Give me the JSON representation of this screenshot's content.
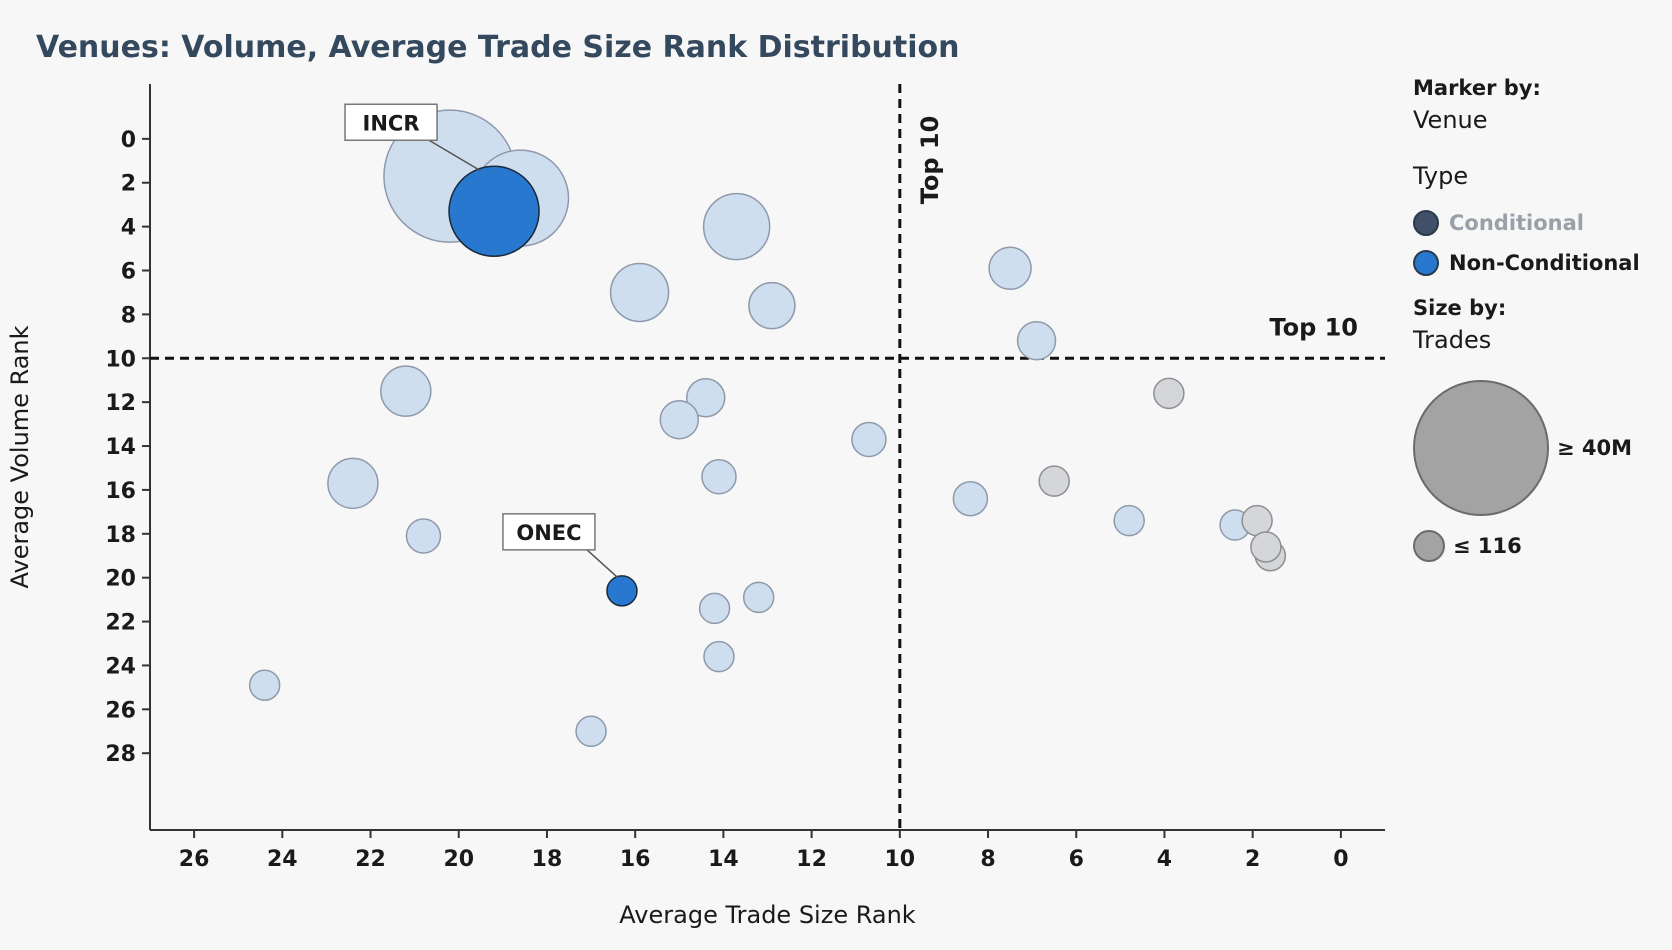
{
  "title": "Venues: Volume, Average Trade Size Rank Distribution",
  "legend": {
    "marker_by_heading": "Marker by:",
    "marker_by_value": "Venue",
    "type_heading": "Type",
    "types": [
      {
        "label": "Conditional",
        "color": "#3f5068",
        "label_color": "#9aa0a8"
      },
      {
        "label": "Non-Conditional",
        "color": "#2878d0",
        "label_color": "#1a1a1a"
      }
    ],
    "size_by_heading": "Size by:",
    "size_by_value": "Trades",
    "size_max_label": "≥ 40M",
    "size_min_label": "≤ 116"
  },
  "colors": {
    "default_fill": "#cfdeee",
    "default_stroke": "#8e9aab",
    "gray_fill": "#d4d6d9",
    "gray_stroke": "#8d8f93",
    "highlight_fill": "#2878d0",
    "highlight_stroke": "#1a2a3a"
  },
  "chart_data": {
    "type": "scatter",
    "title": "Venues: Volume, Average Trade Size Rank Distribution",
    "xlabel": "Average Trade Size Rank",
    "ylabel": "Average Volume Rank",
    "xlim": [
      27,
      -1
    ],
    "ylim": [
      -2.5,
      31.5
    ],
    "x_reversed": true,
    "y_reversed": true,
    "x_ticks": [
      26,
      24,
      22,
      20,
      18,
      16,
      14,
      12,
      10,
      8,
      6,
      4,
      2,
      0
    ],
    "y_ticks": [
      0,
      2,
      4,
      6,
      8,
      10,
      12,
      14,
      16,
      18,
      20,
      22,
      24,
      26,
      28
    ],
    "reference_lines": [
      {
        "axis": "x",
        "value": 10,
        "label": "Top 10"
      },
      {
        "axis": "y",
        "value": 10,
        "label": "Top 10"
      }
    ],
    "grid": false,
    "legend_position": "right",
    "points": [
      {
        "x": 20.2,
        "y": 1.7,
        "r": 66,
        "style": "default"
      },
      {
        "x": 18.6,
        "y": 2.7,
        "r": 48,
        "style": "default"
      },
      {
        "x": 19.2,
        "y": 3.3,
        "r": 45,
        "style": "highlight",
        "label": "INCR"
      },
      {
        "x": 13.7,
        "y": 4.0,
        "r": 33,
        "style": "default"
      },
      {
        "x": 15.9,
        "y": 7.0,
        "r": 29,
        "style": "default"
      },
      {
        "x": 12.9,
        "y": 7.6,
        "r": 23,
        "style": "default"
      },
      {
        "x": 7.5,
        "y": 5.9,
        "r": 21,
        "style": "default"
      },
      {
        "x": 6.9,
        "y": 9.2,
        "r": 19,
        "style": "default"
      },
      {
        "x": 21.2,
        "y": 11.5,
        "r": 25,
        "style": "default"
      },
      {
        "x": 14.4,
        "y": 11.8,
        "r": 19,
        "style": "default"
      },
      {
        "x": 15.0,
        "y": 12.8,
        "r": 19,
        "style": "default"
      },
      {
        "x": 10.7,
        "y": 13.7,
        "r": 17,
        "style": "default"
      },
      {
        "x": 3.9,
        "y": 11.6,
        "r": 15,
        "style": "gray"
      },
      {
        "x": 22.4,
        "y": 15.7,
        "r": 25,
        "style": "default"
      },
      {
        "x": 14.1,
        "y": 15.4,
        "r": 17,
        "style": "default"
      },
      {
        "x": 8.4,
        "y": 16.4,
        "r": 17,
        "style": "default"
      },
      {
        "x": 6.5,
        "y": 15.6,
        "r": 15,
        "style": "gray"
      },
      {
        "x": 4.8,
        "y": 17.4,
        "r": 15,
        "style": "default"
      },
      {
        "x": 2.4,
        "y": 17.6,
        "r": 15,
        "style": "default"
      },
      {
        "x": 1.9,
        "y": 17.4,
        "r": 15,
        "style": "gray"
      },
      {
        "x": 1.6,
        "y": 19.0,
        "r": 15,
        "style": "gray"
      },
      {
        "x": 1.7,
        "y": 18.6,
        "r": 15,
        "style": "gray"
      },
      {
        "x": 20.8,
        "y": 18.1,
        "r": 17,
        "style": "default"
      },
      {
        "x": 16.3,
        "y": 20.6,
        "r": 15,
        "style": "highlight",
        "label": "ONEC"
      },
      {
        "x": 14.2,
        "y": 21.4,
        "r": 15,
        "style": "default"
      },
      {
        "x": 13.2,
        "y": 20.9,
        "r": 15,
        "style": "default"
      },
      {
        "x": 14.1,
        "y": 23.6,
        "r": 15,
        "style": "default"
      },
      {
        "x": 24.4,
        "y": 24.9,
        "r": 15,
        "style": "default"
      },
      {
        "x": 17.0,
        "y": 27.0,
        "r": 15,
        "style": "default"
      }
    ]
  }
}
